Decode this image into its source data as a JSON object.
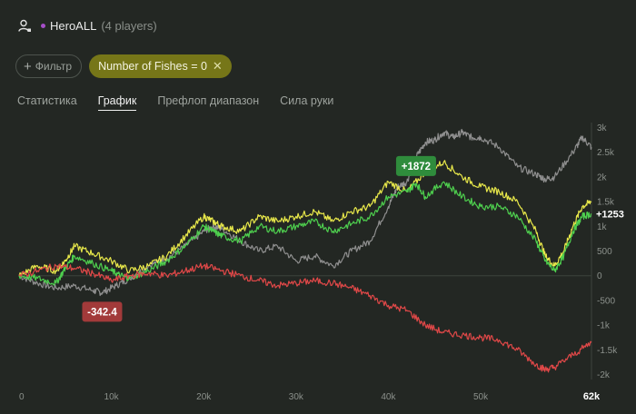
{
  "header": {
    "user_icon": "user-settings-icon",
    "hero_name": "HeroALL",
    "players": "(4 players)"
  },
  "filters": {
    "add_filter_label": "Фильтр",
    "active_filter_label": "Number of Fishes = 0",
    "active_filter_color": "#767618"
  },
  "tabs": [
    {
      "label": "Статистика",
      "active": false
    },
    {
      "label": "График",
      "active": true
    },
    {
      "label": "Префлоп диапазон",
      "active": false
    },
    {
      "label": "Сила руки",
      "active": false
    }
  ],
  "chart_data": {
    "type": "line",
    "x_ticks": [
      "0",
      "10k",
      "20k",
      "30k",
      "40k",
      "50k",
      "62k"
    ],
    "x_tick_values": [
      0,
      10000,
      20000,
      30000,
      40000,
      50000,
      62000
    ],
    "y_ticks": [
      "3k",
      "2.5k",
      "2k",
      "1.5k",
      "1k",
      "500",
      "0",
      "-500",
      "-1k",
      "-1.5k",
      "-2k"
    ],
    "y_tick_values": [
      3000,
      2500,
      2000,
      1500,
      1000,
      500,
      0,
      -500,
      -1000,
      -1500,
      -2000
    ],
    "xlim": [
      0,
      62000
    ],
    "ylim": [
      -2100,
      3100
    ],
    "grid": false,
    "zero_line": true,
    "series": [
      {
        "color": "#8f8f8f",
        "x": [
          0,
          2000,
          4000,
          6000,
          8000,
          9000,
          10500,
          12000,
          14000,
          16000,
          18000,
          20000,
          21000,
          22000,
          24000,
          26000,
          28000,
          30000,
          32000,
          34000,
          36000,
          38000,
          40000,
          41000,
          42000,
          43000,
          44000,
          45000,
          46000,
          47000,
          48000,
          49000,
          50000,
          52000,
          54000,
          56000,
          57000,
          58000,
          60000,
          61000,
          62000
        ],
        "values": [
          0,
          -150,
          -250,
          -200,
          -300,
          -342.4,
          -200,
          -50,
          200,
          350,
          600,
          900,
          1000,
          950,
          700,
          500,
          600,
          300,
          400,
          200,
          500,
          700,
          1400,
          1800,
          1900,
          2400,
          2700,
          2750,
          2900,
          2800,
          2900,
          2800,
          2800,
          2600,
          2200,
          2050,
          1950,
          2000,
          2500,
          2800,
          2600
        ]
      },
      {
        "color": "#e8e84a",
        "x": [
          0,
          2000,
          4000,
          5000,
          6000,
          8000,
          10000,
          12000,
          14000,
          16000,
          18000,
          20000,
          21000,
          22000,
          24000,
          26000,
          28000,
          30000,
          32000,
          34000,
          36000,
          38000,
          40000,
          42000,
          44000,
          46000,
          48000,
          50000,
          52000,
          54000,
          56000,
          57000,
          58000,
          59000,
          60000,
          61000,
          62000
        ],
        "values": [
          0,
          200,
          100,
          300,
          600,
          450,
          300,
          100,
          200,
          400,
          800,
          1200,
          1100,
          1000,
          900,
          1200,
          1100,
          1200,
          1300,
          1100,
          1300,
          1400,
          1900,
          1700,
          2100,
          2300,
          2000,
          1800,
          1700,
          1500,
          900,
          400,
          200,
          500,
          1000,
          1400,
          1500
        ]
      },
      {
        "color": "#4ecf4e",
        "x": [
          0,
          2000,
          4000,
          5000,
          6000,
          8000,
          10000,
          11000,
          12000,
          14000,
          16000,
          18000,
          20000,
          21000,
          22000,
          24000,
          26000,
          28000,
          30000,
          32000,
          34000,
          36000,
          38000,
          40000,
          42000,
          43000,
          44000,
          46000,
          48000,
          50000,
          52000,
          54000,
          56000,
          57000,
          58000,
          59000,
          60000,
          61000,
          62000
        ],
        "values": [
          0,
          -50,
          -150,
          150,
          400,
          250,
          100,
          0,
          -50,
          100,
          300,
          600,
          1000,
          900,
          800,
          700,
          1000,
          900,
          1000,
          1100,
          900,
          1050,
          1200,
          1600,
          1700,
          1872,
          1600,
          1900,
          1600,
          1400,
          1400,
          1200,
          700,
          300,
          100,
          400,
          900,
          1200,
          1253
        ]
      },
      {
        "color": "#e04848",
        "x": [
          0,
          2000,
          4000,
          6000,
          8000,
          10000,
          12000,
          14000,
          16000,
          18000,
          20000,
          22000,
          24000,
          26000,
          28000,
          30000,
          32000,
          34000,
          36000,
          38000,
          40000,
          42000,
          44000,
          46000,
          48000,
          50000,
          52000,
          54000,
          56000,
          57000,
          58000,
          60000,
          62000
        ],
        "values": [
          0,
          100,
          200,
          150,
          50,
          -100,
          0,
          50,
          0,
          100,
          200,
          100,
          0,
          -100,
          -200,
          -150,
          -100,
          -150,
          -250,
          -400,
          -600,
          -700,
          -1000,
          -1150,
          -1200,
          -1250,
          -1300,
          -1500,
          -1800,
          -1900,
          -1850,
          -1600,
          -1350
        ]
      }
    ],
    "annotations": [
      {
        "label": "+1872",
        "x": 43000,
        "y": 1872,
        "color": "#2f8c3c"
      },
      {
        "label": "-342.4",
        "x": 9000,
        "y": -342.4,
        "color": "#a23a3a"
      },
      {
        "label": "+1253",
        "x": 62000,
        "y": 1253,
        "color": "#ffffff"
      }
    ]
  }
}
